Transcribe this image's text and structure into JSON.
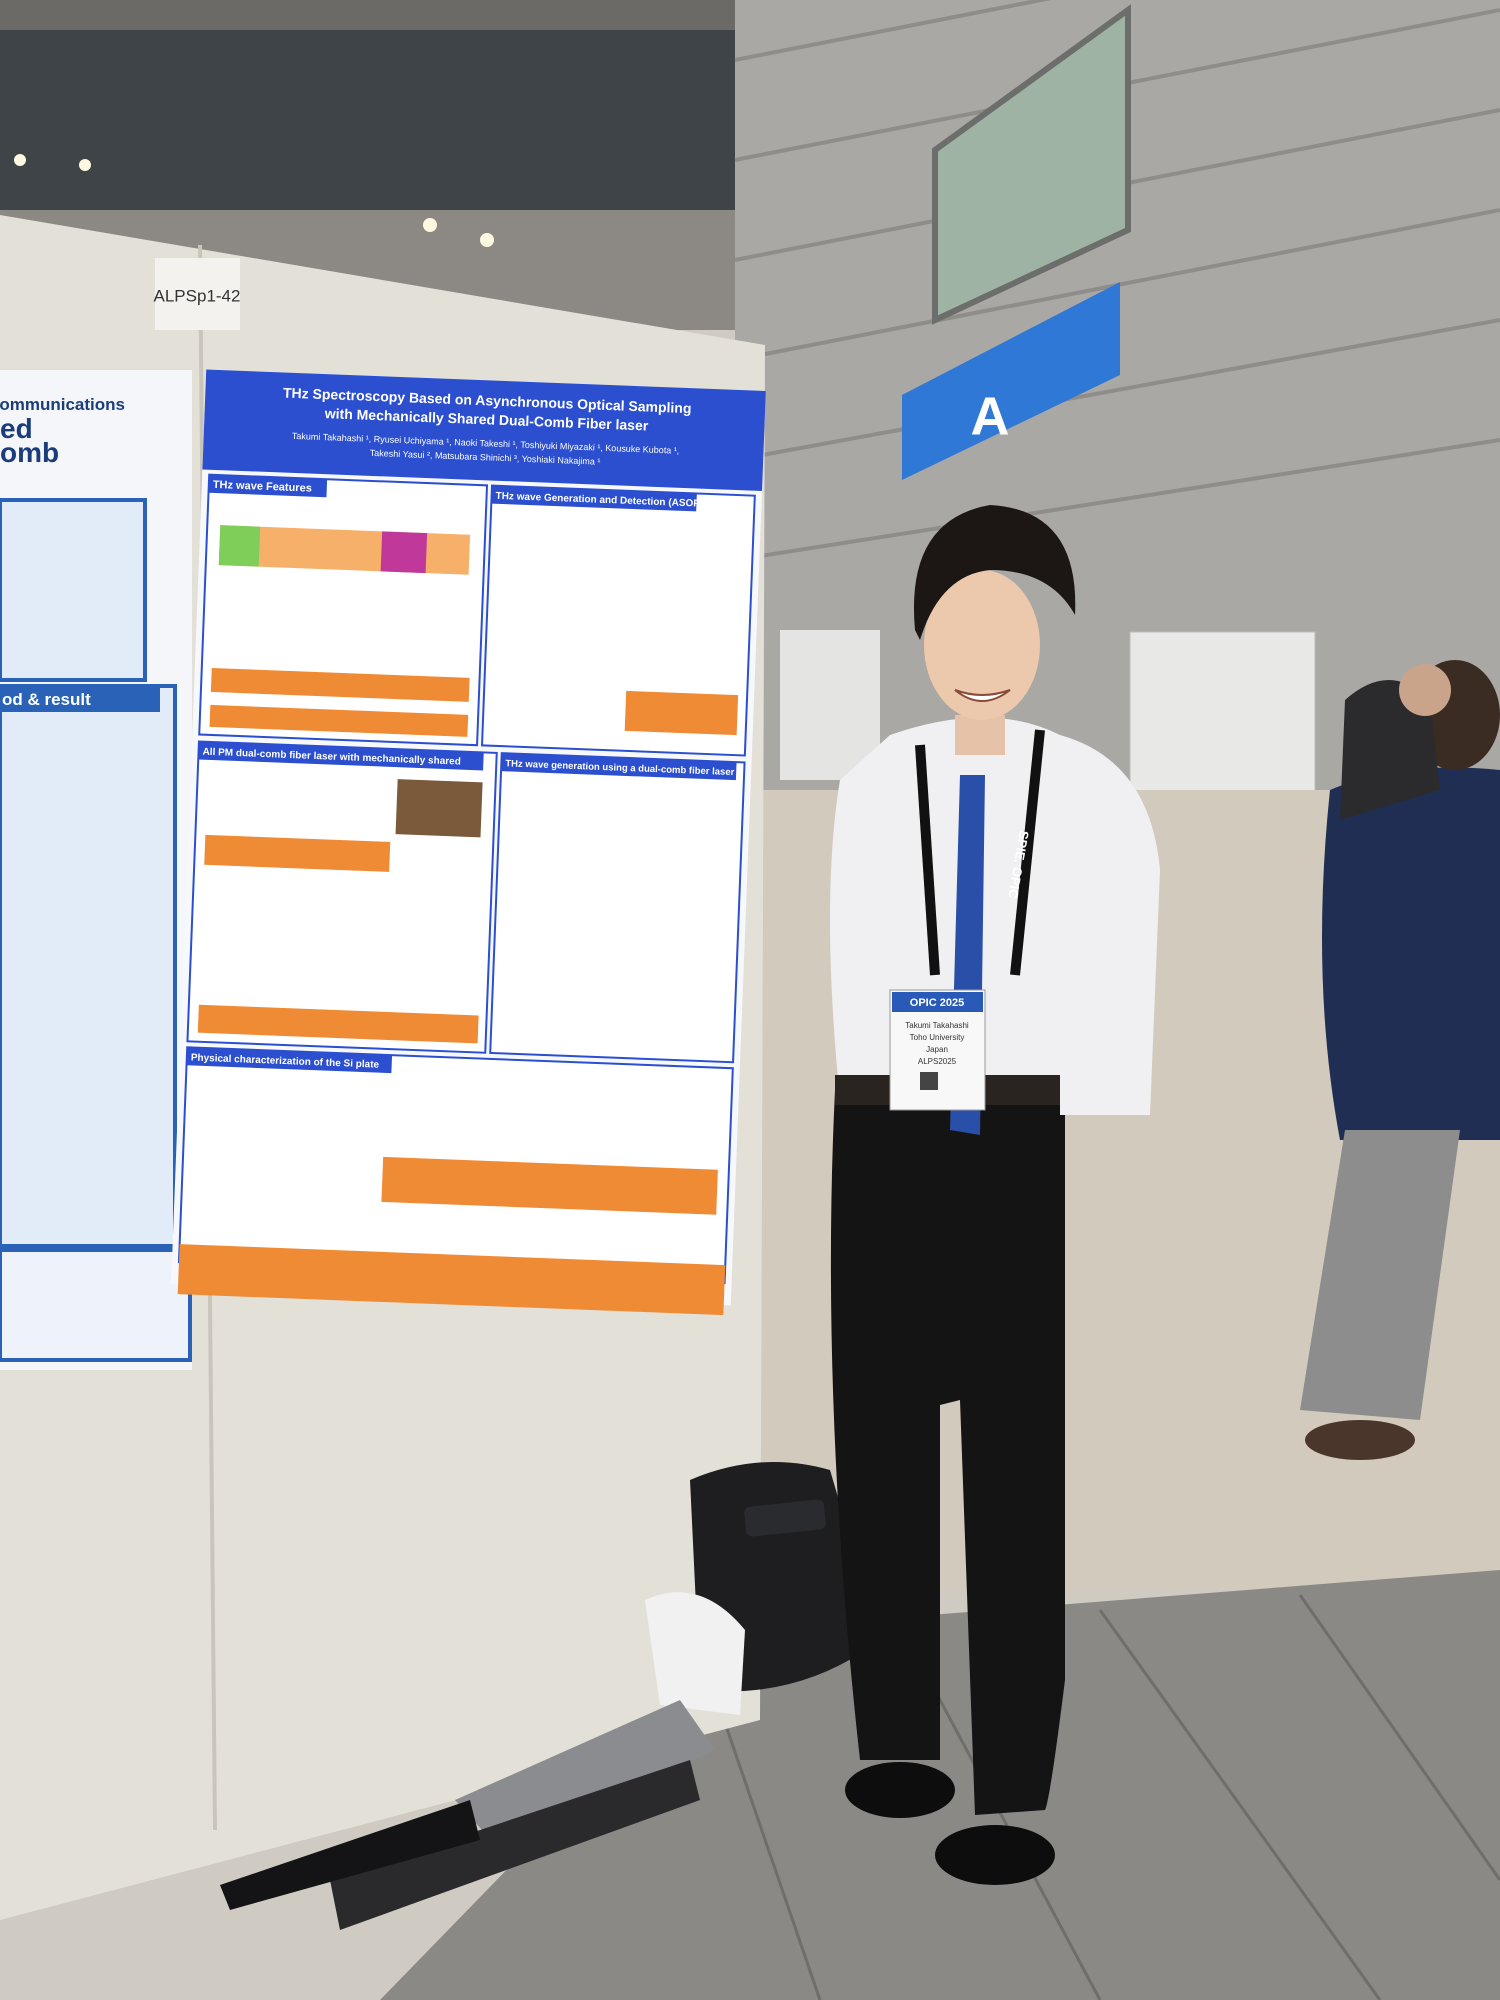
{
  "label": "ALPSp1-42",
  "sign": "A",
  "poster": {
    "title_lines": [
      "THz Spectroscopy Based on Asynchronous Optical Sampling",
      "with Mechanically Shared Dual-Comb Fiber laser"
    ],
    "author_lines": [
      "Takumi Takahashi ¹, Ryusei Uchiyama ¹, Naoki Takeshi ¹, Toshiyuki Miyazaki ¹, Kousuke Kubota ¹,",
      "Takeshi Yasui ², Matsubara Shinichi ³, Yoshiaki Nakajima ¹"
    ],
    "sections": [
      "THz wave Features",
      "THz wave Generation and Detection (ASOPS)",
      "All PM dual-comb fiber laser with mechanically shared",
      "THz wave generation using a dual-comb fiber laser",
      "Physical characterization of the Si plate"
    ]
  },
  "left_poster": {
    "lines": [
      "o-Communications",
      "ed",
      "omb",
      "od & result"
    ]
  },
  "badge": {
    "event": "OPIC 2025",
    "name": "Takumi Takahashi",
    "affiliation": "Toho University",
    "country": "Japan",
    "code": "ALPS2025"
  },
  "lanyard": "SPIE. OPIC"
}
